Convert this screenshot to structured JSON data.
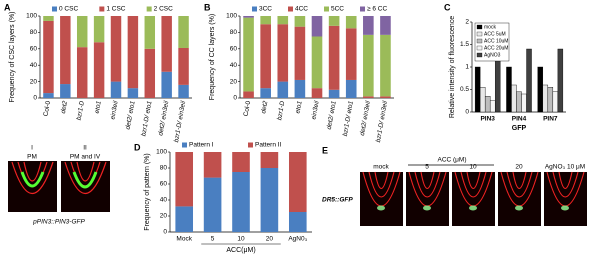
{
  "chart_data": [
    {
      "type": "stacked_bar",
      "panel": "A",
      "ylabel": "Frequency of CSC layers (%)",
      "categories": [
        "Col-0",
        "det2",
        "bzr1-D",
        "eto1",
        "ein3eil",
        "det2/ eto1",
        "bzr1-D/ eto1",
        "det2/ ein3eil",
        "bzr1-D/ ein3eil"
      ],
      "series": [
        {
          "name": "0 CSC",
          "color": "#4a7fc1",
          "values": [
            6,
            17,
            0,
            0,
            20,
            12,
            0,
            32,
            16
          ]
        },
        {
          "name": "1 CSC",
          "color": "#c0504d",
          "values": [
            88,
            83,
            62,
            68,
            80,
            88,
            60,
            68,
            45
          ]
        },
        {
          "name": "2 CSC",
          "color": "#9bbb59",
          "values": [
            6,
            0,
            38,
            32,
            0,
            0,
            40,
            0,
            39
          ]
        }
      ],
      "ylim": [
        0,
        100
      ],
      "yticks": [
        0,
        20,
        40,
        60,
        80,
        100
      ]
    },
    {
      "type": "stacked_bar",
      "panel": "B",
      "ylabel": "Frequency of CC layers (%)",
      "categories": [
        "Col-0",
        "det2",
        "bzr1-D",
        "eto1",
        "ein3eil",
        "det2/ eto1",
        "bzr1-D/ eto1",
        "det2/ ein3eil",
        "bzr1-D/ ein3eil"
      ],
      "series": [
        {
          "name": "3CC",
          "color": "#4a7fc1",
          "values": [
            0,
            12,
            20,
            22,
            0,
            10,
            22,
            0,
            0
          ]
        },
        {
          "name": "4CC",
          "color": "#c0504d",
          "values": [
            8,
            78,
            70,
            65,
            12,
            78,
            63,
            2,
            2
          ]
        },
        {
          "name": "5CC",
          "color": "#9bbb59",
          "values": [
            90,
            10,
            10,
            13,
            63,
            12,
            15,
            75,
            75
          ]
        },
        {
          "name": "≥ 6 CC",
          "color": "#8064a2",
          "values": [
            2,
            0,
            0,
            0,
            25,
            0,
            0,
            23,
            23
          ]
        }
      ],
      "ylim": [
        0,
        100
      ],
      "yticks": [
        0,
        20,
        40,
        60,
        80,
        100
      ]
    },
    {
      "type": "grouped_bar",
      "panel": "C",
      "ylabel": "Relative intensity of fluorescence",
      "xlabel": "GFP",
      "categories": [
        "PIN3",
        "PIN4",
        "PIN7"
      ],
      "series": [
        {
          "name": "mock",
          "color": "#000000",
          "values": [
            1.0,
            1.0,
            1.0
          ]
        },
        {
          "name": "ACC 5uM",
          "color": "#e8e8e8",
          "values": [
            0.55,
            0.6,
            0.6
          ]
        },
        {
          "name": "ACC 10uM",
          "color": "#bdbdbd",
          "values": [
            0.35,
            0.45,
            0.55
          ]
        },
        {
          "name": "ACC 20uM",
          "color": "#f5f5f5",
          "values": [
            0.25,
            0.4,
            0.45
          ]
        },
        {
          "name": "AgNO3",
          "color": "#404040",
          "values": [
            1.3,
            1.4,
            1.4
          ]
        }
      ],
      "ylim": [
        0,
        2
      ],
      "yticks": [
        0,
        0.5,
        1,
        1.5,
        2
      ]
    },
    {
      "type": "stacked_bar",
      "panel": "D",
      "ylabel": "Frequency of pattern (%)",
      "xlabel": "ACC(μM)",
      "categories": [
        "Mock",
        "5",
        "10",
        "20",
        "AgN0₃"
      ],
      "series": [
        {
          "name": "Pattern I",
          "color": "#4a7fc1",
          "values": [
            32,
            68,
            75,
            80,
            25
          ]
        },
        {
          "name": "Pattern II",
          "color": "#c0504d",
          "values": [
            68,
            32,
            25,
            20,
            75
          ]
        }
      ],
      "ylim": [
        0,
        100
      ],
      "yticks": [
        0,
        20,
        40,
        60,
        80,
        100
      ]
    }
  ],
  "figure": {
    "panel_e": "E",
    "d_images": {
      "i": "I",
      "ii": "II",
      "pm": "PM",
      "pm_iv": "PM and IV",
      "caption": "pPIN3::PIN3-GFP"
    },
    "e_images": {
      "caption": "DR5::GFP",
      "acc": "ACC (μM)",
      "labels": [
        "mock",
        "5",
        "10",
        "20",
        "AgNO₃ 10 μM"
      ]
    }
  }
}
